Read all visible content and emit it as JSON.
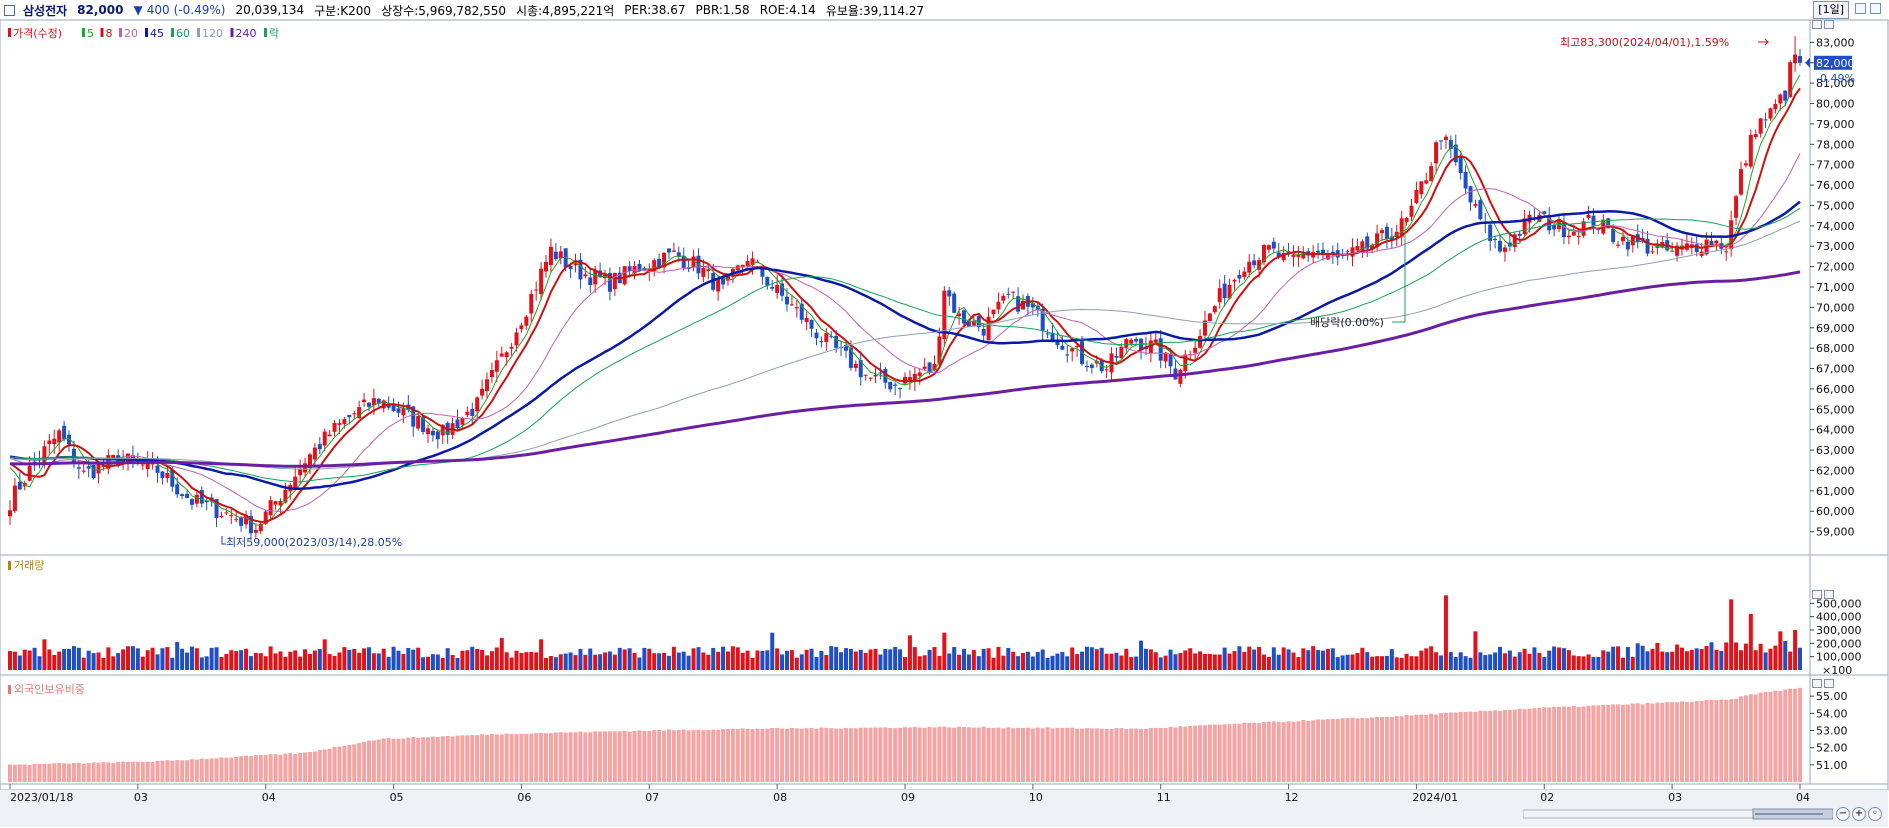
{
  "header": {
    "name": "삼성전자",
    "price": "82,000",
    "change_arrow": "▼",
    "change": "400",
    "change_pct": "(-0.49%)",
    "volume": "20,039,134",
    "market": "구분:K200",
    "shares": "상장수:5,969,782,550",
    "cap": "시총:4,895,221억",
    "per": "PER:38.67",
    "pbr": "PBR:1.58",
    "roe": "ROE:4.14",
    "float": "유보율:39,114.27",
    "period": "[1일]"
  },
  "colors": {
    "up": "#e3111a",
    "down": "#1f4fc4",
    "flat": "#000000",
    "ma5": "#2aa12a",
    "ma8": "#cc1111",
    "ma20": "#c062b0",
    "ma45": "#0a1aa6",
    "ma60": "#18a15f",
    "ma120": "#8fa0b4",
    "ma240": "#6a1fa3",
    "foreign": "#f5a3a3"
  },
  "price_legend": [
    {
      "label": "가격(수정)",
      "color": "#e3111a"
    },
    {
      "label": "5",
      "color": "#2aa12a"
    },
    {
      "label": "8",
      "color": "#cc1111"
    },
    {
      "label": "20",
      "color": "#c062b0"
    },
    {
      "label": "45",
      "color": "#0a1aa6"
    },
    {
      "label": "60",
      "color": "#18a15f"
    },
    {
      "label": "120",
      "color": "#8fa0b4"
    },
    {
      "label": "240",
      "color": "#6a1fa3"
    },
    {
      "label": "락",
      "color": "#18a15f"
    }
  ],
  "volume_legend": "거래량",
  "foreign_legend": "외국인보유비중",
  "annotations": {
    "high": "최고83,300(2024/04/01),1.59%",
    "low": "최저59,000(2023/03/14),28.05%",
    "dividend": "배당락(0.00%)",
    "last_price": "82,000",
    "last_pct": "-0.49%"
  },
  "chart_data": [
    {
      "type": "candlestick",
      "name": "가격(수정)",
      "x_start": "2023/01/18",
      "x_end": "2024/04/02",
      "ylim": [
        58000,
        84000
      ],
      "yticks": [
        59000,
        60000,
        61000,
        62000,
        63000,
        64000,
        65000,
        66000,
        67000,
        68000,
        69000,
        70000,
        71000,
        72000,
        73000,
        74000,
        75000,
        76000,
        77000,
        78000,
        79000,
        80000,
        81000,
        82000,
        83000
      ],
      "xlabels": [
        "2023/01/18",
        "03",
        "04",
        "05",
        "06",
        "07",
        "08",
        "09",
        "10",
        "11",
        "12",
        "2024/01",
        "02",
        "03",
        "04"
      ],
      "anchors": [
        [
          0,
          60500
        ],
        [
          5,
          62400
        ],
        [
          10,
          63800
        ],
        [
          15,
          61800
        ],
        [
          22,
          62600
        ],
        [
          30,
          62000
        ],
        [
          37,
          60500
        ],
        [
          45,
          59800
        ],
        [
          50,
          59200
        ],
        [
          55,
          60800
        ],
        [
          60,
          62500
        ],
        [
          65,
          63800
        ],
        [
          70,
          64800
        ],
        [
          75,
          65500
        ],
        [
          82,
          64500
        ],
        [
          88,
          63800
        ],
        [
          95,
          65200
        ],
        [
          100,
          67500
        ],
        [
          105,
          70000
        ],
        [
          110,
          72800
        ],
        [
          115,
          71800
        ],
        [
          122,
          71200
        ],
        [
          128,
          72000
        ],
        [
          135,
          72600
        ],
        [
          140,
          72000
        ],
        [
          145,
          70800
        ],
        [
          150,
          72500
        ],
        [
          155,
          71000
        ],
        [
          160,
          69800
        ],
        [
          165,
          68500
        ],
        [
          170,
          67500
        ],
        [
          175,
          66500
        ],
        [
          180,
          66200
        ],
        [
          185,
          66800
        ],
        [
          188,
          67000
        ],
        [
          190,
          71000
        ],
        [
          193,
          69500
        ],
        [
          198,
          69000
        ],
        [
          203,
          70500
        ],
        [
          208,
          69800
        ],
        [
          213,
          68500
        ],
        [
          218,
          67500
        ],
        [
          223,
          67000
        ],
        [
          228,
          68500
        ],
        [
          233,
          68000
        ],
        [
          237,
          66800
        ],
        [
          242,
          68800
        ],
        [
          246,
          70500
        ],
        [
          251,
          72200
        ],
        [
          256,
          72800
        ],
        [
          260,
          72200
        ],
        [
          265,
          72800
        ],
        [
          270,
          72300
        ],
        [
          275,
          72800
        ],
        [
          280,
          73500
        ],
        [
          284,
          74200
        ],
        [
          288,
          76500
        ],
        [
          291,
          78500
        ],
        [
          294,
          77000
        ],
        [
          297,
          75200
        ],
        [
          300,
          73800
        ],
        [
          303,
          72800
        ],
        [
          306,
          73500
        ],
        [
          310,
          74500
        ],
        [
          314,
          74000
        ],
        [
          318,
          73800
        ],
        [
          322,
          74300
        ],
        [
          326,
          73500
        ],
        [
          330,
          73200
        ],
        [
          334,
          72900
        ],
        [
          338,
          72700
        ],
        [
          342,
          73000
        ],
        [
          346,
          73300
        ],
        [
          349,
          73000
        ],
        [
          352,
          76500
        ],
        [
          355,
          78900
        ],
        [
          358,
          79500
        ],
        [
          361,
          80500
        ],
        [
          363,
          82800
        ],
        [
          364,
          82000
        ]
      ],
      "moving_averages": [
        5,
        8,
        20,
        45,
        60,
        120,
        240
      ]
    },
    {
      "type": "bar",
      "name": "거래량",
      "unit": "×100",
      "ylim": [
        0,
        600000
      ],
      "yticks": [
        100000,
        200000,
        300000,
        400000,
        500000
      ],
      "ytick_labels": [
        "100,000",
        "200,000",
        "300,000",
        "400,000",
        "500,000"
      ],
      "spikes": [
        [
          7,
          230000
        ],
        [
          34,
          210000
        ],
        [
          64,
          230000
        ],
        [
          100,
          240000
        ],
        [
          108,
          230000
        ],
        [
          155,
          280000
        ],
        [
          183,
          260000
        ],
        [
          190,
          280000
        ],
        [
          230,
          220000
        ],
        [
          292,
          560000
        ],
        [
          298,
          290000
        ],
        [
          350,
          490000
        ],
        [
          354,
          380000
        ],
        [
          360,
          250000
        ],
        [
          363,
          260000
        ]
      ]
    },
    {
      "type": "bar",
      "name": "외국인보유비중",
      "ylim": [
        50,
        56
      ],
      "yticks": [
        51,
        52,
        53,
        54,
        55
      ],
      "ytick_labels": [
        "51.00",
        "52.00",
        "53.00",
        "54.00",
        "55.00"
      ],
      "anchors": [
        [
          0,
          51.0
        ],
        [
          30,
          51.2
        ],
        [
          60,
          51.7
        ],
        [
          75,
          52.5
        ],
        [
          100,
          52.8
        ],
        [
          130,
          53.0
        ],
        [
          150,
          53.1
        ],
        [
          190,
          53.2
        ],
        [
          230,
          53.1
        ],
        [
          250,
          53.4
        ],
        [
          280,
          53.8
        ],
        [
          310,
          54.3
        ],
        [
          335,
          54.6
        ],
        [
          350,
          54.8
        ],
        [
          354,
          55.1
        ],
        [
          364,
          55.5
        ]
      ]
    }
  ]
}
